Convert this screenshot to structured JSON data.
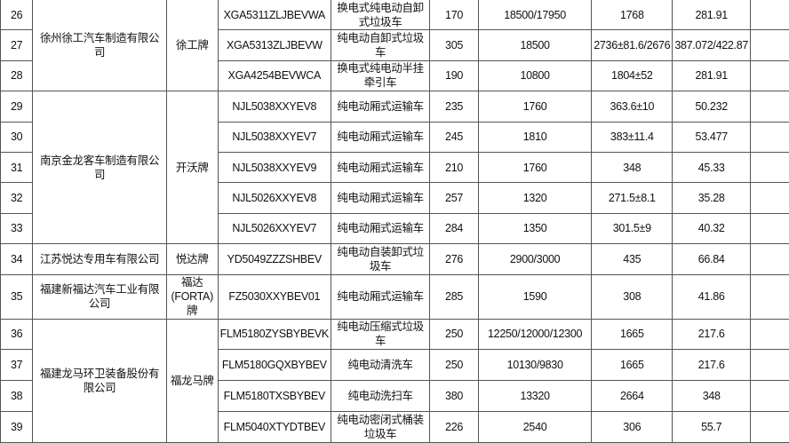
{
  "groups": [
    {
      "company": "徐州徐工汽车制造有限公司",
      "brand": "徐工牌",
      "rows": [
        {
          "no": "26",
          "model": "XGA5311ZLJBEVWA",
          "type": "换电式纯电动自卸式垃圾车",
          "c1": "170",
          "c2": "18500/17950",
          "c3": "1768",
          "c4": "281.91"
        },
        {
          "no": "27",
          "model": "XGA5313ZLJBEVW",
          "type": "纯电动自卸式垃圾车",
          "c1": "305",
          "c2": "18500",
          "c3": "2736±81.6/2676",
          "c4": "387.072/422.87"
        },
        {
          "no": "28",
          "model": "XGA4254BEVWCA",
          "type": "换电式纯电动半挂牵引车",
          "c1": "190",
          "c2": "10800",
          "c3": "1804±52",
          "c4": "281.91"
        }
      ]
    },
    {
      "company": "南京金龙客车制造有限公司",
      "brand": "开沃牌",
      "rows": [
        {
          "no": "29",
          "model": "NJL5038XXYEV8",
          "type": "纯电动厢式运输车",
          "c1": "235",
          "c2": "1760",
          "c3": "363.6±10",
          "c4": "50.232"
        },
        {
          "no": "30",
          "model": "NJL5038XXYEV7",
          "type": "纯电动厢式运输车",
          "c1": "245",
          "c2": "1810",
          "c3": "383±11.4",
          "c4": "53.477"
        },
        {
          "no": "31",
          "model": "NJL5038XXYEV9",
          "type": "纯电动厢式运输车",
          "c1": "210",
          "c2": "1760",
          "c3": "348",
          "c4": "45.33"
        },
        {
          "no": "32",
          "model": "NJL5026XXYEV8",
          "type": "纯电动厢式运输车",
          "c1": "257",
          "c2": "1320",
          "c3": "271.5±8.1",
          "c4": "35.28"
        },
        {
          "no": "33",
          "model": "NJL5026XXYEV7",
          "type": "纯电动厢式运输车",
          "c1": "284",
          "c2": "1350",
          "c3": "301.5±9",
          "c4": "40.32"
        }
      ]
    },
    {
      "company": "江苏悦达专用车有限公司",
      "brand": "悦达牌",
      "rows": [
        {
          "no": "34",
          "model": "YD5049ZZZSHBEV",
          "type": "纯电动自装卸式垃圾车",
          "c1": "276",
          "c2": "2900/3000",
          "c3": "435",
          "c4": "66.84"
        }
      ]
    },
    {
      "company": "福建新福达汽车工业有限公司",
      "brand": "福达(FORTA)牌",
      "rows": [
        {
          "no": "35",
          "model": "FZ5030XXYBEV01",
          "type": "纯电动厢式运输车",
          "c1": "285",
          "c2": "1590",
          "c3": "308",
          "c4": "41.86"
        }
      ]
    },
    {
      "company": "福建龙马环卫装备股份有限公司",
      "brand": "福龙马牌",
      "rows": [
        {
          "no": "36",
          "model": "FLM5180ZYSBYBEVK",
          "type": "纯电动压缩式垃圾车",
          "c1": "250",
          "c2": "12250/12000/12300",
          "c3": "1665",
          "c4": "217.6"
        },
        {
          "no": "37",
          "model": "FLM5180GQXBYBEV",
          "type": "纯电动清洗车",
          "c1": "250",
          "c2": "10130/9830",
          "c3": "1665",
          "c4": "217.6"
        },
        {
          "no": "38",
          "model": "FLM5180TXSBYBEV",
          "type": "纯电动洗扫车",
          "c1": "380",
          "c2": "13320",
          "c3": "2664",
          "c4": "348"
        },
        {
          "no": "39",
          "model": "FLM5040XTYDTBEV",
          "type": "纯电动密闭式桶装垃圾车",
          "c1": "226",
          "c2": "2540",
          "c3": "306",
          "c4": "55.7"
        }
      ]
    }
  ]
}
